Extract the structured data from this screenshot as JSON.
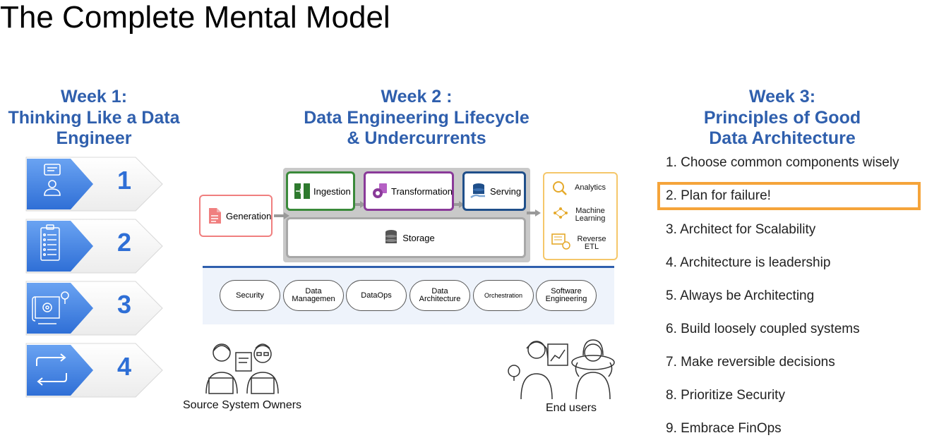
{
  "title": "The Complete Mental Model",
  "week1": {
    "heading": [
      "Week 1:",
      "Thinking Like a Data",
      "Engineer"
    ],
    "items": [
      {
        "number": "1",
        "icon": "user-profile-icon"
      },
      {
        "number": "2",
        "icon": "clipboard-checklist-icon"
      },
      {
        "number": "3",
        "icon": "blueprint-gear-lightbulb-icon"
      },
      {
        "number": "4",
        "icon": "cycle-arrows-icon"
      }
    ]
  },
  "week2": {
    "heading": [
      "Week 2 :",
      "Data Engineering Lifecycle",
      "& Undercurrents"
    ],
    "stages": {
      "generation": "Generation",
      "ingestion": "Ingestion",
      "transformation": "Transformation",
      "serving": "Serving",
      "storage": "Storage"
    },
    "outputs": {
      "analytics": "Analytics",
      "ml": [
        "Machine",
        "Learning"
      ],
      "reverse_etl": [
        "Reverse",
        "ETL"
      ]
    },
    "undercurrents": [
      [
        "Security"
      ],
      [
        "Data",
        "Managemen"
      ],
      [
        "DataOps"
      ],
      [
        "Data",
        "Architecture"
      ],
      [
        "Orchestration"
      ],
      [
        "Software",
        "Engineering"
      ]
    ],
    "source_owners": "Source System Owners",
    "end_users": "End users"
  },
  "week3": {
    "heading": [
      "Week 3:",
      "Principles of Good",
      "Data Architecture"
    ],
    "principles": [
      "1. Choose common components wisely",
      "2. Plan for failure!",
      "3. Architect for Scalability",
      "4. Architecture is leadership",
      "5. Always be Architecting",
      "6. Build loosely coupled systems",
      "7. Make reversible decisions",
      "8. Prioritize Security",
      "9. Embrace FinOps"
    ],
    "highlighted_index": 1
  },
  "colors": {
    "heading_blue": "#2f5fad",
    "number_blue": "#2f6fd6",
    "generation": "#f07f7f",
    "ingestion": "#3a8a3a",
    "transformation": "#8a3a99",
    "serving": "#1f4f8a",
    "outputs_border": "#f5c76a",
    "highlight": "#f5a43a"
  }
}
